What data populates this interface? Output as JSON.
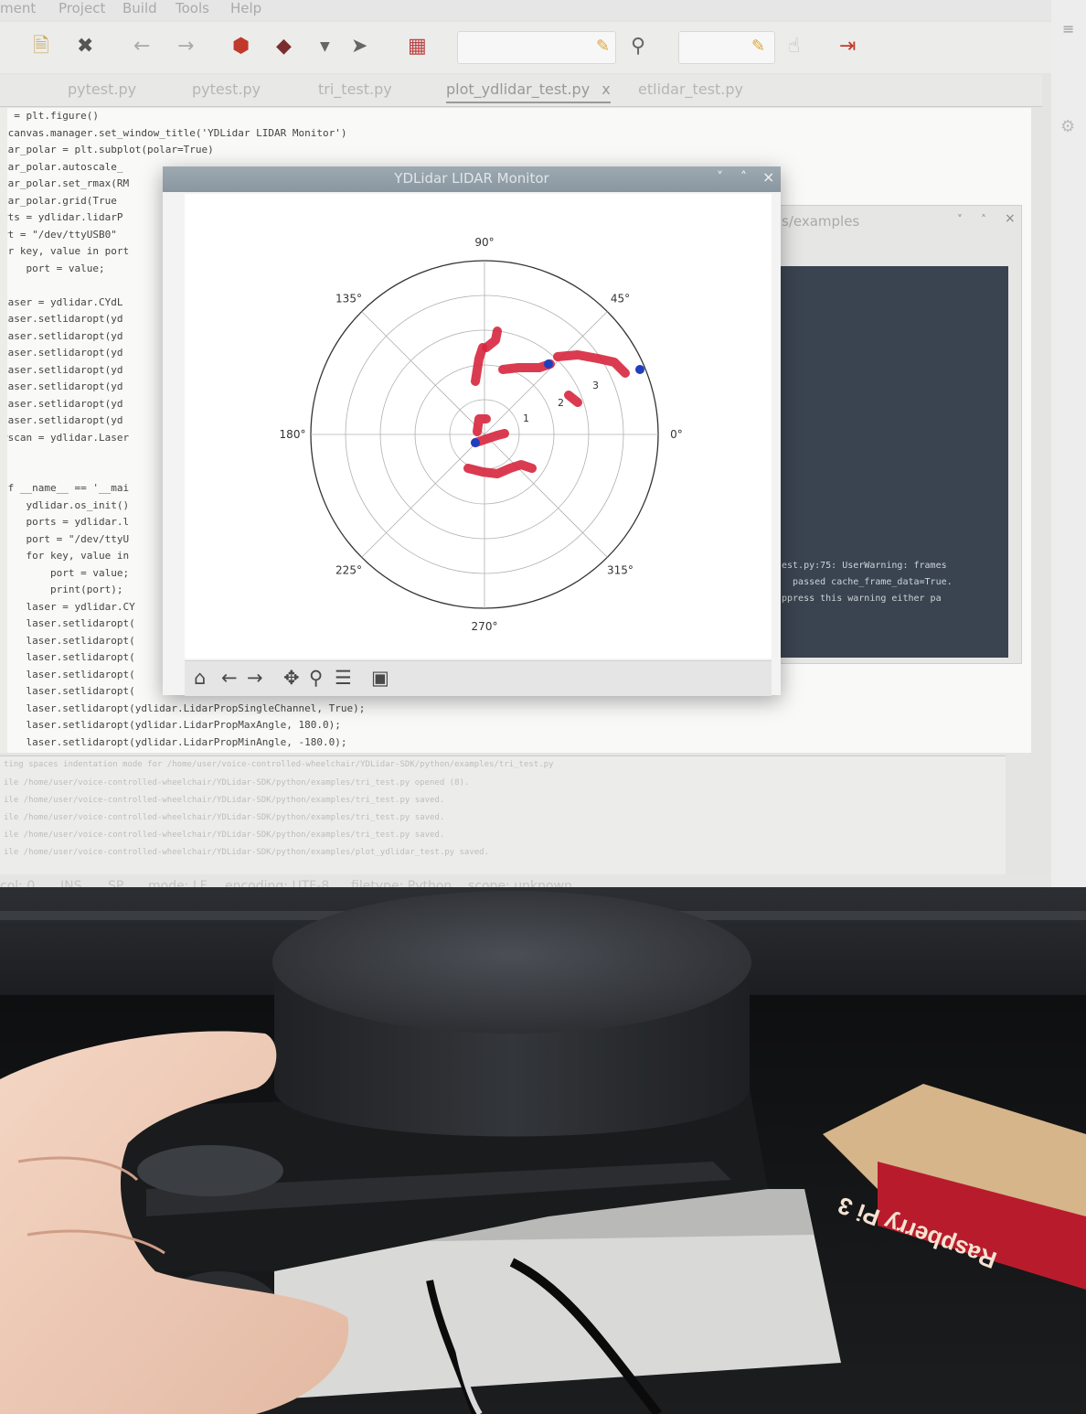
{
  "menu": {
    "items": [
      "ment",
      "Project",
      "Build",
      "Tools",
      "Help"
    ]
  },
  "tabs": [
    "pytest.py",
    "pytest.py",
    "tri_test.py",
    "plot_ydlidar_test.py",
    "etlidar_test.py"
  ],
  "tab_close": "x",
  "code_top": [
    "} = plt.figure()",
    ".canvas.manager.set_window_title('YDLidar LIDAR Monitor')",
    "dar_polar = plt.subplot(polar=True)",
    "dar_polar.autoscale_",
    "dar_polar.set_rmax(RM",
    "dar_polar.grid(True",
    "rts = ydlidar.lidarP",
    "rt = \"/dev/ttyUSB0\"",
    "or key, value in port",
    "    port = value;",
    "",
    "laser = ydlidar.CYdL",
    "laser.setlidaropt(yd",
    "laser.setlidaropt(yd",
    "laser.setlidaropt(yd",
    "laser.setlidaropt(yd",
    "laser.setlidaropt(yd",
    "laser.setlidaropt(yd",
    "laser.setlidaropt(yd",
    "#scan = ydlidar.Laser",
    "",
    "",
    "if __name__ == '__mai",
    "    ydlidar.os_init()",
    "    ports = ydlidar.l",
    "    port = \"/dev/ttyU",
    "    for key, value in",
    "        port = value;",
    "        print(port);",
    "    laser = ydlidar.CY",
    "    laser.setlidaropt(",
    "    laser.setlidaropt(",
    "    laser.setlidaropt(",
    "    laser.setlidaropt(",
    "    laser.setlidaropt(",
    "    laser.setlidaropt(ydlidar.LidarPropSingleChannel, True);",
    "    laser.setlidaropt(ydlidar.LidarPropMaxAngle, 180.0);",
    "    laser.setlidaropt(ydlidar.LidarPropMinAngle, -180.0);"
  ],
  "terminal": {
    "title": "s/examples",
    "lines": [
      "est.py:75: UserWarning: frames",
      "  passed cache_frame_data=True.",
      "ppress this warning either pa"
    ]
  },
  "plot_window": {
    "title": "YDLidar LIDAR Monitor",
    "buttons": [
      "˅",
      "˄",
      "×"
    ]
  },
  "polar": {
    "angle_labels": [
      "0°",
      "45°",
      "90°",
      "135°",
      "180°",
      "225°",
      "270°",
      "315°"
    ],
    "radial_labels": [
      "1",
      "2",
      "3"
    ],
    "colors": {
      "points": "#d7263d",
      "markers": "#1f3fbf",
      "grid": "#b0b0b0"
    }
  },
  "log": [
    "ting spaces indentation mode for /home/user/voice-controlled-wheelchair/YDLidar-SDK/python/examples/tri_test.py",
    "ile /home/user/voice-controlled-wheelchair/YDLidar-SDK/python/examples/tri_test.py opened (8).",
    "ile /home/user/voice-controlled-wheelchair/YDLidar-SDK/python/examples/tri_test.py saved.",
    "ile /home/user/voice-controlled-wheelchair/YDLidar-SDK/python/examples/tri_test.py saved.",
    "ile /home/user/voice-controlled-wheelchair/YDLidar-SDK/python/examples/tri_test.py saved.",
    "ile /home/user/voice-controlled-wheelchair/YDLidar-SDK/python/examples/plot_ydlidar_test.py saved."
  ],
  "status": [
    "col: 0",
    "INS",
    "SP",
    "mode: LF",
    "encoding: UTF-8",
    "filetype: Python",
    "scope: unknown"
  ],
  "photo": {
    "box_label": "Raspberry Pi 3"
  }
}
